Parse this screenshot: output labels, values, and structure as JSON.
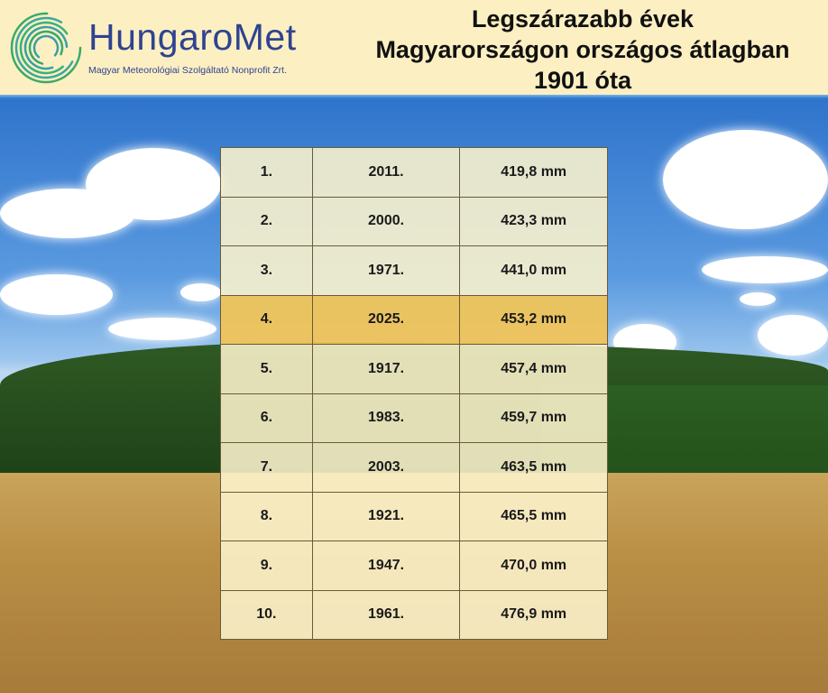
{
  "header": {
    "brand": "HungaroMet",
    "subtitle": "Magyar Meteorológiai Szolgáltató Nonprofit Zrt.",
    "title_lines": [
      "Legszárazabb évek",
      "Magyarországon országos átlagban",
      "1901 óta"
    ]
  },
  "colors": {
    "header_bg": "#fcefc2",
    "brand": "#2e4391",
    "highlight_row": "#f0c45a",
    "row_bg": "#fdf4cd"
  },
  "table": {
    "highlighted_rank": "4.",
    "rows": [
      {
        "rank": "1.",
        "year": "2011.",
        "precip": "419,8 mm"
      },
      {
        "rank": "2.",
        "year": "2000.",
        "precip": "423,3 mm"
      },
      {
        "rank": "3.",
        "year": "1971.",
        "precip": "441,0 mm"
      },
      {
        "rank": "4.",
        "year": "2025.",
        "precip": "453,2 mm"
      },
      {
        "rank": "5.",
        "year": "1917.",
        "precip": "457,4 mm"
      },
      {
        "rank": "6.",
        "year": "1983.",
        "precip": "459,7 mm"
      },
      {
        "rank": "7.",
        "year": "2003.",
        "precip": "463,5 mm"
      },
      {
        "rank": "8.",
        "year": "1921.",
        "precip": "465,5 mm"
      },
      {
        "rank": "9.",
        "year": "1947.",
        "precip": "470,0 mm"
      },
      {
        "rank": "10.",
        "year": "1961.",
        "precip": "476,9 mm"
      }
    ]
  }
}
